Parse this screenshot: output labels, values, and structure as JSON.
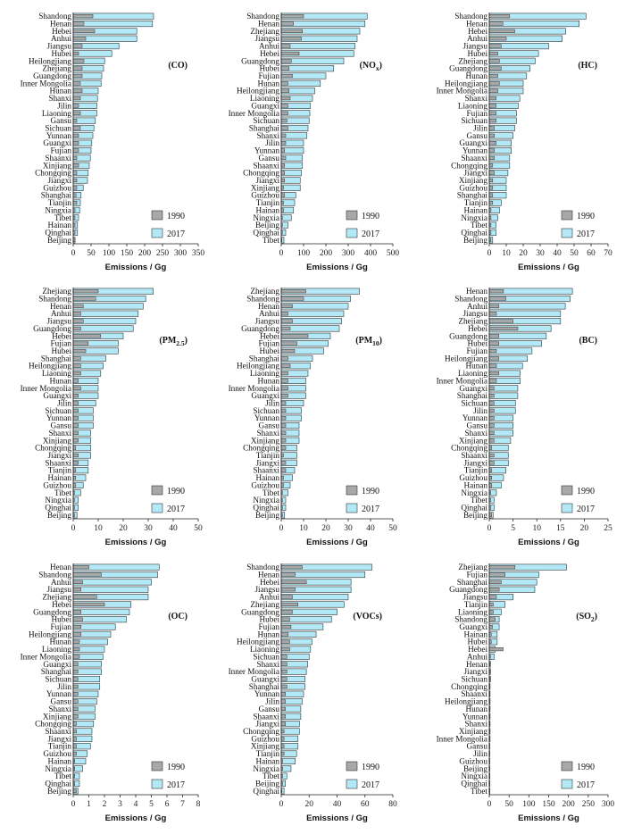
{
  "colors": {
    "y2017": "#b3e8f7",
    "y1990": "#a8a8a8",
    "stroke": "#333333"
  },
  "legend": {
    "y1990": "1990",
    "y2017": "2017"
  },
  "xlabel": "Emissions / Gg",
  "chart_data": [
    {
      "type": "bar",
      "title": "(CO)",
      "title_base": "(CO)",
      "title_sub": "",
      "title_end": "",
      "xlabel": "Emissions / Gg",
      "xlim": [
        0,
        350
      ],
      "xticks": [
        0,
        50,
        100,
        150,
        200,
        250,
        300,
        350
      ],
      "categories": [
        "Shandong",
        "Henan",
        "Hebei",
        "Anhui",
        "Jiangsu",
        "Hubei",
        "Heilongjiang",
        "Zhejiang",
        "Guangdong",
        "Inner Mongolia",
        "Hunan",
        "Shanxi",
        "Jilin",
        "Liaoning",
        "Gansu",
        "Sichuan",
        "Yunnan",
        "Guangxi",
        "Fujian",
        "Shaanxi",
        "Xinjiang",
        "Chongqing",
        "Jiangxi",
        "Guizhou",
        "Shanghai",
        "Tianjin",
        "Ningxia",
        "Tibet",
        "Hainan",
        "Qinghai",
        "Beijing"
      ],
      "series": [
        {
          "name": "1990",
          "values": [
            55,
            30,
            60,
            35,
            25,
            15,
            30,
            25,
            25,
            20,
            25,
            20,
            15,
            20,
            10,
            20,
            15,
            15,
            15,
            10,
            15,
            10,
            10,
            10,
            8,
            10,
            5,
            5,
            5,
            5,
            5
          ]
        },
        {
          "name": "2017",
          "values": [
            225,
            222,
            178,
            178,
            128,
            108,
            88,
            85,
            80,
            78,
            70,
            68,
            66,
            66,
            62,
            58,
            55,
            52,
            50,
            48,
            45,
            42,
            40,
            28,
            22,
            20,
            18,
            15,
            12,
            12,
            5
          ]
        }
      ]
    },
    {
      "type": "bar",
      "title": "(NOx)",
      "title_base": "(NO",
      "title_sub": "x",
      "title_end": ")",
      "xlabel": "Emissions / Gg",
      "xlim": [
        0,
        500
      ],
      "xticks": [
        0,
        100,
        200,
        300,
        400,
        500
      ],
      "categories": [
        "Shandong",
        "Henan",
        "Zhejiang",
        "Jiangsu",
        "Anhui",
        "Hebei",
        "Guangdong",
        "Hubei",
        "Fujian",
        "Hunan",
        "Heilongjiang",
        "Liaoning",
        "Guangxi",
        "Inner Mongolia",
        "Sichuan",
        "Shanghai",
        "Shanxi",
        "Jilin",
        "Yunnan",
        "Gansu",
        "Shaanxi",
        "Chongqing",
        "Jiangxi",
        "Xinjiang",
        "Guizhou",
        "Tianjin",
        "Hainan",
        "Ningxia",
        "Beijing",
        "Qinghai",
        "Tibet"
      ],
      "series": [
        {
          "name": "1990",
          "values": [
            100,
            55,
            95,
            90,
            40,
            80,
            45,
            35,
            50,
            30,
            35,
            40,
            30,
            30,
            25,
            30,
            20,
            20,
            15,
            20,
            15,
            15,
            15,
            10,
            15,
            10,
            10,
            5,
            5,
            5,
            3
          ]
        },
        {
          "name": "2017",
          "values": [
            385,
            375,
            352,
            340,
            330,
            325,
            280,
            235,
            200,
            175,
            150,
            140,
            130,
            128,
            125,
            120,
            115,
            100,
            100,
            95,
            95,
            90,
            85,
            85,
            65,
            60,
            55,
            45,
            30,
            20,
            12
          ]
        }
      ]
    },
    {
      "type": "bar",
      "title": "(HC)",
      "title_base": "(HC)",
      "title_sub": "",
      "title_end": "",
      "xlabel": "Emissions / Gg",
      "xlim": [
        0,
        70
      ],
      "xticks": [
        0,
        10,
        20,
        30,
        40,
        50,
        60,
        70
      ],
      "categories": [
        "Shandong",
        "Henan",
        "Hebei",
        "Anhui",
        "Jiangsu",
        "Hubei",
        "Zhejiang",
        "Guangdong",
        "Hunan",
        "Heilongjiang",
        "Inner Mongolia",
        "Shanxi",
        "Liaoning",
        "Fujian",
        "Sichuan",
        "Jilin",
        "Gansu",
        "Guangxi",
        "Yunnan",
        "Shaanxi",
        "Chongqing",
        "Jiangxi",
        "Xinjiang",
        "Guizhou",
        "Shanghai",
        "Tianjin",
        "Hainan",
        "Ningxia",
        "Tibet",
        "Qinghai",
        "Beijing"
      ],
      "series": [
        {
          "name": "1990",
          "values": [
            12,
            8,
            15,
            10,
            7,
            5,
            6,
            7,
            5,
            6,
            5,
            4,
            4,
            4,
            4,
            3,
            3,
            4,
            3,
            3,
            2,
            3,
            2,
            2,
            2,
            2,
            1,
            1,
            1,
            1,
            1
          ]
        },
        {
          "name": "2017",
          "values": [
            57,
            53,
            45,
            43,
            35,
            29,
            27,
            24,
            22,
            20,
            20,
            18,
            17,
            16,
            16,
            15,
            14,
            13,
            13,
            12,
            12,
            11,
            10,
            10,
            10,
            7,
            6,
            5,
            4,
            4,
            2
          ]
        }
      ]
    },
    {
      "type": "bar",
      "title": "(PM2.5)",
      "title_base": "(PM",
      "title_sub": "2.5",
      "title_end": ")",
      "xlabel": "Emissions / Gg",
      "xlim": [
        0,
        50
      ],
      "xticks": [
        0,
        10,
        20,
        30,
        40,
        50
      ],
      "categories": [
        "Zhejiang",
        "Shandong",
        "Henan",
        "Anhui",
        "Jiangsu",
        "Guangdong",
        "Hebei",
        "Fujian",
        "Hubei",
        "Shanghai",
        "Heilongjiang",
        "Liaoning",
        "Hunan",
        "Inner Mongolia",
        "Guangxi",
        "Jilin",
        "Sichuan",
        "Yunnan",
        "Gansu",
        "Shanxi",
        "Xinjiang",
        "Chongqing",
        "Jiangxi",
        "Shaanxi",
        "Tianjin",
        "Hainan",
        "Guizhou",
        "Tibet",
        "Ningxia",
        "Qinghai",
        "Beijing"
      ],
      "series": [
        {
          "name": "1990",
          "values": [
            10,
            9,
            4,
            3,
            4,
            3,
            11,
            6,
            5,
            3,
            3,
            3,
            2,
            3,
            2,
            2,
            2,
            2,
            2,
            2,
            2,
            1,
            2,
            2,
            1,
            1,
            1,
            0.5,
            0.5,
            0.5,
            0.5
          ]
        },
        {
          "name": "2017",
          "values": [
            32,
            29,
            28,
            26,
            25,
            24,
            20,
            18,
            18,
            13,
            12,
            11,
            10,
            10,
            10,
            9,
            8,
            8,
            8,
            7,
            7,
            7,
            7,
            6,
            6,
            5,
            4,
            3,
            2,
            2,
            1.5
          ]
        }
      ]
    },
    {
      "type": "bar",
      "title": "(PM10)",
      "title_base": "(PM",
      "title_sub": "10",
      "title_end": ")",
      "xlabel": "Emissions / Gg",
      "xlim": [
        0,
        50
      ],
      "xticks": [
        0,
        10,
        20,
        30,
        40,
        50
      ],
      "categories": [
        "Zhejiang",
        "Shandong",
        "Henan",
        "Anhui",
        "Jiangsu",
        "Guangdong",
        "Hebei",
        "Fujian",
        "Hubei",
        "Shanghai",
        "Heilongjiang",
        "Liaoning",
        "Hunan",
        "Inner Mongolia",
        "Guangxi",
        "Jilin",
        "Sichuan",
        "Yunnan",
        "Gansu",
        "Shanxi",
        "Xinjiang",
        "Chongqing",
        "Tianjin",
        "Jiangxi",
        "Shaanxi",
        "Hainan",
        "Guizhou",
        "Tibet",
        "Ningxia",
        "Qinghai",
        "Beijing"
      ],
      "series": [
        {
          "name": "1990",
          "values": [
            11,
            10,
            5,
            3,
            5,
            4,
            12,
            7,
            6,
            3,
            4,
            3,
            3,
            3,
            3,
            2,
            2,
            2,
            2,
            2,
            2,
            2,
            1,
            2,
            2,
            1,
            1,
            0.5,
            0.5,
            0.5,
            0.5
          ]
        },
        {
          "name": "2017",
          "values": [
            35,
            31,
            30,
            28,
            27,
            26,
            22,
            21,
            19,
            14,
            13,
            12,
            11,
            11,
            11,
            10,
            9,
            9,
            8,
            8,
            8,
            7,
            7,
            7,
            6,
            5,
            4,
            3,
            2,
            2,
            1.5
          ]
        }
      ]
    },
    {
      "type": "bar",
      "title": "(BC)",
      "title_base": "(BC)",
      "title_sub": "",
      "title_end": "",
      "xlabel": "Emissions / Gg",
      "xlim": [
        0,
        25
      ],
      "xticks": [
        0,
        5,
        10,
        15,
        20,
        25
      ],
      "categories": [
        "Henan",
        "Shandong",
        "Anhui",
        "Jiangsu",
        "Zhejiang",
        "Hebei",
        "Guangdong",
        "Hubei",
        "Fujian",
        "Heilongjiang",
        "Hunan",
        "Liaoning",
        "Inner Mongolia",
        "Guangxi",
        "Shanghai",
        "Sichuan",
        "Jilin",
        "Yunnan",
        "Gansu",
        "Shanxi",
        "Xinjiang",
        "Chongqing",
        "Shaanxi",
        "Jiangxi",
        "Tianjin",
        "Guizhou",
        "Hainan",
        "Ningxia",
        "Tibet",
        "Qinghai",
        "Beijing"
      ],
      "series": [
        {
          "name": "1990",
          "values": [
            3,
            3.5,
            2,
            1.5,
            5,
            6,
            2,
            2,
            1.5,
            2,
            1.5,
            2,
            1.5,
            1,
            1,
            1,
            1,
            1,
            1,
            1,
            1,
            0.5,
            1,
            1,
            0.5,
            0.5,
            0.5,
            0.3,
            0.3,
            0.3,
            0.5
          ]
        },
        {
          "name": "2017",
          "values": [
            17.5,
            17,
            16,
            15,
            15,
            13,
            12,
            11,
            9,
            8,
            7,
            6.5,
            6.5,
            6,
            6,
            5.5,
            5.5,
            5,
            5,
            5,
            4.5,
            4,
            4,
            4,
            3.5,
            3,
            2.5,
            1.5,
            1,
            1,
            0.8
          ]
        }
      ]
    },
    {
      "type": "bar",
      "title": "(OC)",
      "title_base": "(OC)",
      "title_sub": "",
      "title_end": "",
      "xlabel": "Emissions / Gg",
      "xlim": [
        0,
        8
      ],
      "xticks": [
        0,
        1,
        2,
        3,
        4,
        5,
        6,
        7,
        8
      ],
      "categories": [
        "Henan",
        "Shandong",
        "Anhui",
        "Jiangsu",
        "Zhejiang",
        "Hebei",
        "Guangdong",
        "Hubei",
        "Fujian",
        "Heilongjiang",
        "Hunan",
        "Liaoning",
        "Inner Mongolia",
        "Guangxi",
        "Shanghai",
        "Sichuan",
        "Jilin",
        "Yunnan",
        "Gansu",
        "Shanxi",
        "Xinjiang",
        "Chongqing",
        "Shaanxi",
        "Jiangxi",
        "Tianjin",
        "Guizhou",
        "Hainan",
        "Ningxia",
        "Tibet",
        "Qinghai",
        "Beijing"
      ],
      "series": [
        {
          "name": "1990",
          "values": [
            1,
            1.8,
            0.6,
            0.5,
            1.5,
            2,
            0.5,
            0.6,
            0.5,
            0.5,
            0.4,
            0.4,
            0.4,
            0.3,
            0.3,
            0.3,
            0.3,
            0.3,
            0.3,
            0.3,
            0.3,
            0.2,
            0.2,
            0.2,
            0.2,
            0.2,
            0.1,
            0.1,
            0.1,
            0.1,
            0.2
          ]
        },
        {
          "name": "2017",
          "values": [
            5.5,
            5.4,
            5,
            4.8,
            4.8,
            3.7,
            3.6,
            3.4,
            2.7,
            2.4,
            2.2,
            2,
            1.9,
            1.8,
            1.8,
            1.7,
            1.7,
            1.6,
            1.5,
            1.4,
            1.4,
            1.3,
            1.2,
            1.2,
            1.1,
            0.9,
            0.8,
            0.6,
            0.4,
            0.4,
            0.3
          ]
        }
      ]
    },
    {
      "type": "bar",
      "title": "(VOCs)",
      "title_base": "(VOCs)",
      "title_sub": "",
      "title_end": "",
      "xlabel": "Emissions / Gg",
      "xlim": [
        0,
        80
      ],
      "xticks": [
        0,
        20,
        40,
        60,
        80
      ],
      "categories": [
        "Shandong",
        "Henan",
        "Hebei",
        "Jiangsu",
        "Anhui",
        "Zhejiang",
        "Guangdong",
        "Hubei",
        "Fujian",
        "Hunan",
        "Heilongjiang",
        "Liaoning",
        "Sichuan",
        "Shanxi",
        "Inner Mongolia",
        "Guangxi",
        "Shanghai",
        "Yunnan",
        "Jilin",
        "Gansu",
        "Shaanxi",
        "Jiangxi",
        "Chongqing",
        "Guizhou",
        "Xinjiang",
        "Tianjin",
        "Hainan",
        "Ningxia",
        "Tibet",
        "Beijing",
        "Qinghai"
      ],
      "series": [
        {
          "name": "1990",
          "values": [
            15,
            10,
            18,
            10,
            8,
            12,
            8,
            6,
            7,
            5,
            6,
            6,
            4,
            4,
            4,
            4,
            4,
            3,
            3,
            3,
            3,
            3,
            2,
            2,
            2,
            2,
            1,
            1,
            1,
            1,
            0.5
          ]
        },
        {
          "name": "2017",
          "values": [
            65,
            60,
            50,
            50,
            48,
            45,
            40,
            36,
            30,
            25,
            22,
            21,
            20,
            19,
            18,
            17,
            17,
            16,
            15,
            14,
            14,
            13,
            13,
            12,
            12,
            11,
            10,
            7,
            4,
            3,
            2
          ]
        }
      ]
    },
    {
      "type": "bar",
      "title": "(SO2)",
      "title_base": "(SO",
      "title_sub": "2",
      "title_end": ")",
      "xlabel": "Emissions / Gg",
      "xlim": [
        0,
        300
      ],
      "xticks": [
        0,
        50,
        100,
        150,
        200,
        250,
        300
      ],
      "categories": [
        "Zhejiang",
        "Fujian",
        "Shanghai",
        "Guangdong",
        "Jiangsu",
        "Tianjin",
        "Liaoning",
        "Shandong",
        "Guangxi",
        "Hainan",
        "Hubei",
        "Hebei",
        "Anhui",
        "Henan",
        "Jiangxi",
        "Sichuan",
        "Chongqing",
        "Shaanxi",
        "Heilongjiang",
        "Hunan",
        "Yunnan",
        "Shanxi",
        "Xinjiang",
        "Inner Mongolia",
        "Gansu",
        "Jilin",
        "Guizhou",
        "Beijing",
        "Ningxia",
        "Qinghai",
        "Tibet"
      ],
      "series": [
        {
          "name": "1990",
          "values": [
            65,
            40,
            30,
            25,
            18,
            10,
            10,
            15,
            8,
            5,
            5,
            35,
            3,
            2,
            2,
            2,
            1,
            1,
            1,
            1,
            1,
            1,
            1,
            1,
            0.5,
            0.5,
            0.5,
            0.5,
            0.3,
            0.3,
            0.2
          ]
        },
        {
          "name": "2017",
          "values": [
            195,
            125,
            120,
            115,
            60,
            40,
            30,
            25,
            25,
            20,
            20,
            15,
            12,
            3,
            3,
            3,
            2,
            2,
            2,
            2,
            2,
            2,
            2,
            2,
            1,
            1,
            1,
            1,
            1,
            1,
            0.5
          ]
        }
      ]
    }
  ]
}
